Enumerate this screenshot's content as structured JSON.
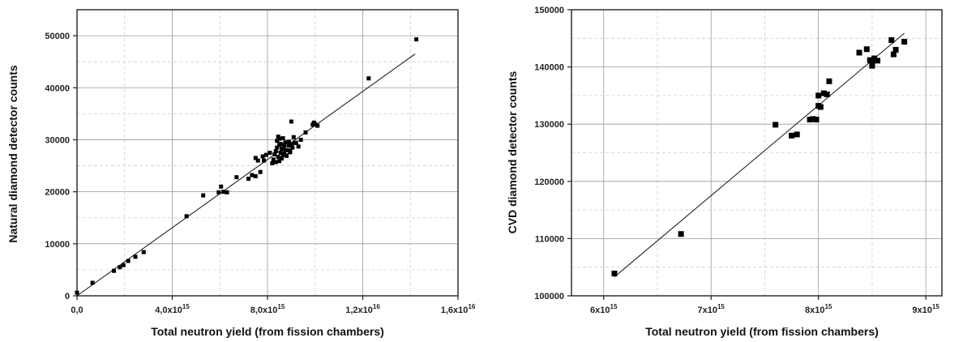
{
  "chart_data": [
    {
      "type": "scatter",
      "xlabel": "Total neutron yield (from fission chambers)",
      "ylabel": "Natural diamond detector counts",
      "xlim": [
        0,
        1.6e+16
      ],
      "ylim": [
        0,
        55000
      ],
      "x_ticks": [
        0,
        4000000000000000.0,
        8000000000000000.0,
        1.2e+16,
        1.6e+16
      ],
      "x_tick_labels": [
        {
          "base": "0,0",
          "exp": ""
        },
        {
          "base": "4,0x10",
          "exp": "15"
        },
        {
          "base": "8,0x10",
          "exp": "15"
        },
        {
          "base": "1,2x10",
          "exp": "16"
        },
        {
          "base": "1,6x10",
          "exp": "16"
        }
      ],
      "y_ticks": [
        0,
        10000,
        20000,
        30000,
        40000,
        50000
      ],
      "y_tick_labels": [
        "0",
        "10000",
        "20000",
        "30000",
        "40000",
        "50000"
      ],
      "grid": true,
      "fit_line": {
        "x": [
          0,
          1.42e+16
        ],
        "y": [
          0,
          46500
        ]
      },
      "points": {
        "x": [
          0.0,
          650000000000000.0,
          1550000000000000.0,
          1800000000000000.0,
          1950000000000000.0,
          2150000000000000.0,
          2450000000000000.0,
          2800000000000000.0,
          4600000000000000.0,
          5300000000000000.0,
          5950000000000000.0,
          6050000000000000.0,
          6150000000000000.0,
          6300000000000000.0,
          6700000000000000.0,
          7200000000000000.0,
          7350000000000000.0,
          7500000000000000.0,
          7600000000000000.0,
          7800000000000000.0,
          7950000000000000.0,
          8100000000000000.0,
          7700000000000000.0,
          7850000000000000.0,
          7500000000000000.0,
          8200000000000000.0,
          8250000000000000.0,
          8300000000000000.0,
          8350000000000000.0,
          8400000000000000.0,
          8450000000000000.0,
          8500000000000000.0,
          8550000000000000.0,
          8600000000000000.0,
          8650000000000000.0,
          8700000000000000.0,
          8750000000000000.0,
          8800000000000000.0,
          8850000000000000.0,
          8900000000000000.0,
          8950000000000000.0,
          9000000000000000.0,
          9050000000000000.0,
          9100000000000000.0,
          9200000000000000.0,
          9300000000000000.0,
          9400000000000000.0,
          8400000000000000.0,
          8500000000000000.0,
          8600000000000000.0,
          8700000000000000.0,
          8450000000000000.0,
          8550000000000000.0,
          8650000000000000.0,
          8750000000000000.0,
          8900000000000000.0,
          9000000000000000.0,
          8350000000000000.0,
          8500000000000000.0,
          8800000000000000.0,
          8600000000000000.0,
          8700000000000000.0,
          8950000000000000.0,
          9150000000000000.0,
          9600000000000000.0,
          9900000000000000.0,
          9950000000000000.0,
          1e+16,
          1.01e+16,
          1.225e+16,
          1.425e+16
        ],
        "y": [
          600,
          2500,
          4800,
          5500,
          5900,
          6700,
          7500,
          8400,
          15300,
          19300,
          19900,
          21000,
          20000,
          19900,
          22800,
          22500,
          23200,
          23000,
          26000,
          26800,
          27100,
          27500,
          23800,
          26000,
          26500,
          25500,
          26200,
          27200,
          27800,
          28500,
          26700,
          29000,
          27500,
          28200,
          30300,
          28800,
          29500,
          27000,
          28000,
          29600,
          27600,
          29100,
          28500,
          30500,
          29400,
          28700,
          30000,
          29800,
          25900,
          26400,
          27300,
          30600,
          29200,
          27100,
          28000,
          28900,
          33500,
          25700,
          30200,
          26900,
          28300,
          29000,
          27900,
          29400,
          31400,
          32900,
          33300,
          33000,
          32700,
          41800,
          49300
        ]
      }
    },
    {
      "type": "scatter",
      "xlabel": "Total neutron yield (from fission chambers)",
      "ylabel": "CVD diamond detector counts",
      "xlim": [
        5700000000000000.0,
        9150000000000000.0
      ],
      "ylim": [
        100000,
        150000
      ],
      "x_ticks": [
        6000000000000000.0,
        7000000000000000.0,
        8000000000000000.0,
        9000000000000000.0
      ],
      "x_tick_labels": [
        {
          "base": "6x10",
          "exp": "15"
        },
        {
          "base": "7x10",
          "exp": "15"
        },
        {
          "base": "8x10",
          "exp": "15"
        },
        {
          "base": "9x10",
          "exp": "15"
        }
      ],
      "y_ticks": [
        100000,
        110000,
        120000,
        130000,
        140000,
        150000
      ],
      "y_tick_labels": [
        "100000",
        "110000",
        "120000",
        "130000",
        "140000",
        "150000"
      ],
      "grid": true,
      "fit_line": {
        "x": [
          6100000000000000.0,
          8800000000000000.0
        ],
        "y": [
          103300,
          145900
        ]
      },
      "points": {
        "x": [
          6100000000000000.0,
          6720000000000000.0,
          7600000000000000.0,
          7750000000000000.0,
          7800000000000000.0,
          7920000000000000.0,
          7950000000000000.0,
          7980000000000000.0,
          8000000000000000.0,
          8020000000000000.0,
          8050000000000000.0,
          8080000000000000.0,
          8100000000000000.0,
          8000000000000000.0,
          8380000000000000.0,
          8450000000000000.0,
          8480000000000000.0,
          8500000000000000.0,
          8520000000000000.0,
          8550000000000000.0,
          8500000000000000.0,
          8680000000000000.0,
          8700000000000000.0,
          8720000000000000.0,
          8800000000000000.0
        ],
        "y": [
          103900,
          110800,
          129900,
          128000,
          128200,
          130800,
          130900,
          130800,
          133200,
          133000,
          135400,
          135200,
          137500,
          135000,
          142500,
          143100,
          141200,
          140200,
          141500,
          141100,
          140600,
          144700,
          142200,
          143000,
          144400
        ]
      }
    }
  ]
}
